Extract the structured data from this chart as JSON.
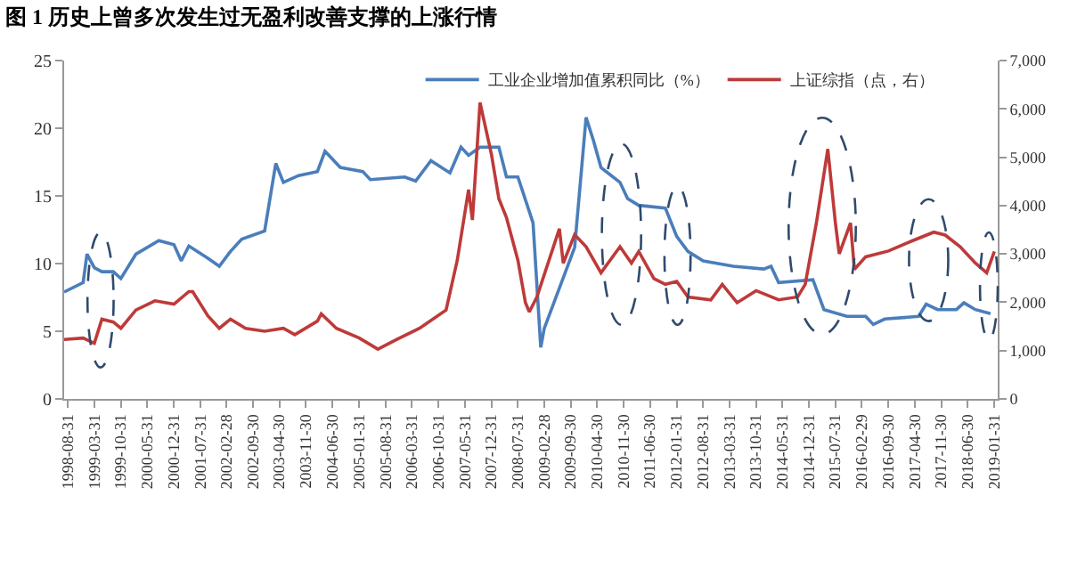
{
  "chart_data": {
    "type": "line",
    "title": "图 1 历史上曾多次发生过无盈利改善支撑的上涨行情",
    "legend": "top",
    "grid": false,
    "marker": "none",
    "line_style": "solid",
    "xlim": [
      "1998-08-01",
      "2019-02-28"
    ],
    "xticks": [
      "1998-08-31",
      "1999-03-31",
      "1999-10-31",
      "2000-05-31",
      "2000-12-31",
      "2001-07-31",
      "2002-02-28",
      "2002-09-30",
      "2003-04-30",
      "2003-11-30",
      "2004-06-30",
      "2005-01-31",
      "2005-08-31",
      "2006-03-31",
      "2006-10-31",
      "2007-05-31",
      "2007-12-31",
      "2008-07-31",
      "2009-02-28",
      "2009-09-30",
      "2010-04-30",
      "2010-11-30",
      "2011-06-30",
      "2012-01-31",
      "2012-08-31",
      "2013-03-31",
      "2013-10-31",
      "2014-05-31",
      "2014-12-31",
      "2015-07-31",
      "2016-02-29",
      "2016-09-30",
      "2017-04-30",
      "2017-11-30",
      "2018-06-30",
      "2019-01-31"
    ],
    "ylim": [
      0,
      25
    ],
    "yticks": [
      0,
      5,
      10,
      15,
      20,
      25
    ],
    "y2lim": [
      0,
      7000
    ],
    "y2ticks": [
      0,
      {
        "value": 1000,
        "label": "1,000"
      },
      {
        "value": 2000,
        "label": "2,000"
      },
      {
        "value": 3000,
        "label": "3,000"
      },
      {
        "value": 4000,
        "label": "4,000"
      },
      {
        "value": 5000,
        "label": "5,000"
      },
      {
        "value": 6000,
        "label": "6,000"
      },
      {
        "value": 7000,
        "label": "7,000"
      }
    ],
    "series": [
      {
        "name": "工业企业增加值累积同比（%）",
        "color": "#4a7ebb",
        "x": [
          "1998-08",
          "1999-01",
          "1999-02",
          "1999-04",
          "1999-06",
          "1999-09",
          "1999-11",
          "2000-03",
          "2000-09",
          "2001-01",
          "2001-03",
          "2001-05",
          "2001-10",
          "2002-01",
          "2002-04",
          "2002-07",
          "2003-01",
          "2003-04",
          "2003-06",
          "2003-10",
          "2004-03",
          "2004-05",
          "2004-09",
          "2005-03",
          "2005-05",
          "2006-02",
          "2006-05",
          "2006-09",
          "2007-02",
          "2007-05",
          "2007-07",
          "2007-10",
          "2008-03",
          "2008-05",
          "2008-08",
          "2008-12",
          "2009-02",
          "2009-03",
          "2009-11",
          "2010-02",
          "2010-04",
          "2010-06",
          "2010-11",
          "2011-01",
          "2011-04",
          "2011-11",
          "2012-02",
          "2012-05",
          "2012-09",
          "2013-05",
          "2014-01",
          "2014-03",
          "2014-05",
          "2015-02",
          "2015-05",
          "2015-11",
          "2016-04",
          "2016-06",
          "2016-09",
          "2017-06",
          "2017-08",
          "2017-11",
          "2018-04",
          "2018-06",
          "2018-09",
          "2019-01"
        ],
        "values": [
          7.9,
          8.6,
          10.7,
          9.7,
          9.4,
          9.4,
          8.9,
          10.7,
          11.7,
          11.4,
          10.2,
          11.3,
          10.4,
          9.8,
          10.9,
          11.8,
          12.4,
          17.4,
          16.0,
          16.5,
          16.8,
          18.3,
          17.1,
          16.8,
          16.2,
          16.4,
          16.1,
          17.6,
          16.7,
          18.6,
          18.0,
          18.6,
          18.6,
          16.4,
          16.4,
          13.0,
          3.8,
          5.2,
          11.2,
          20.8,
          19.1,
          17.1,
          16.0,
          14.8,
          14.3,
          14.1,
          12.0,
          10.9,
          10.2,
          9.8,
          9.6,
          9.8,
          8.6,
          8.8,
          6.6,
          6.1,
          6.1,
          5.5,
          5.9,
          6.1,
          7.0,
          6.6,
          6.6,
          7.1,
          6.6,
          6.3
        ]
      },
      {
        "name": "上证综指（点，右）",
        "color": "#be3a3a",
        "axis": "y2",
        "x": [
          "1998-08",
          "1999-01",
          "1999-04",
          "1999-06",
          "1999-09",
          "1999-11",
          "2000-03",
          "2000-08",
          "2001-01",
          "2001-05",
          "2001-06",
          "2001-10",
          "2002-01",
          "2002-04",
          "2002-08",
          "2003-01",
          "2003-06",
          "2003-09",
          "2004-03",
          "2004-04",
          "2004-08",
          "2005-02",
          "2005-07",
          "2005-12",
          "2006-06",
          "2007-01",
          "2007-04",
          "2007-07",
          "2007-08",
          "2007-10",
          "2008-01",
          "2008-03",
          "2008-05",
          "2008-08",
          "2008-10",
          "2008-11",
          "2009-01",
          "2009-07",
          "2009-08",
          "2009-11",
          "2010-02",
          "2010-06",
          "2010-11",
          "2011-02",
          "2011-04",
          "2011-08",
          "2011-11",
          "2012-02",
          "2012-05",
          "2012-11",
          "2013-02",
          "2013-06",
          "2013-11",
          "2014-05",
          "2014-10",
          "2014-12",
          "2015-03",
          "2015-06",
          "2015-08",
          "2015-09",
          "2015-12",
          "2016-01",
          "2016-04",
          "2016-10",
          "2017-04",
          "2017-10",
          "2018-01",
          "2018-05",
          "2018-09",
          "2018-12",
          "2019-02"
        ],
        "values": [
          1230,
          1260,
          1150,
          1650,
          1590,
          1460,
          1840,
          2030,
          1960,
          2220,
          2220,
          1720,
          1460,
          1650,
          1460,
          1400,
          1460,
          1330,
          1610,
          1760,
          1460,
          1260,
          1030,
          1230,
          1460,
          1840,
          2870,
          4330,
          3700,
          6130,
          5060,
          4140,
          3750,
          2870,
          1990,
          1800,
          2110,
          3520,
          2810,
          3400,
          3150,
          2610,
          3150,
          2810,
          3050,
          2490,
          2370,
          2430,
          2110,
          2050,
          2370,
          1990,
          2240,
          2050,
          2110,
          2370,
          3640,
          5170,
          3640,
          3000,
          3640,
          2680,
          2940,
          3060,
          3260,
          3450,
          3390,
          3150,
          2810,
          2610,
          3050
        ]
      }
    ]
  }
}
